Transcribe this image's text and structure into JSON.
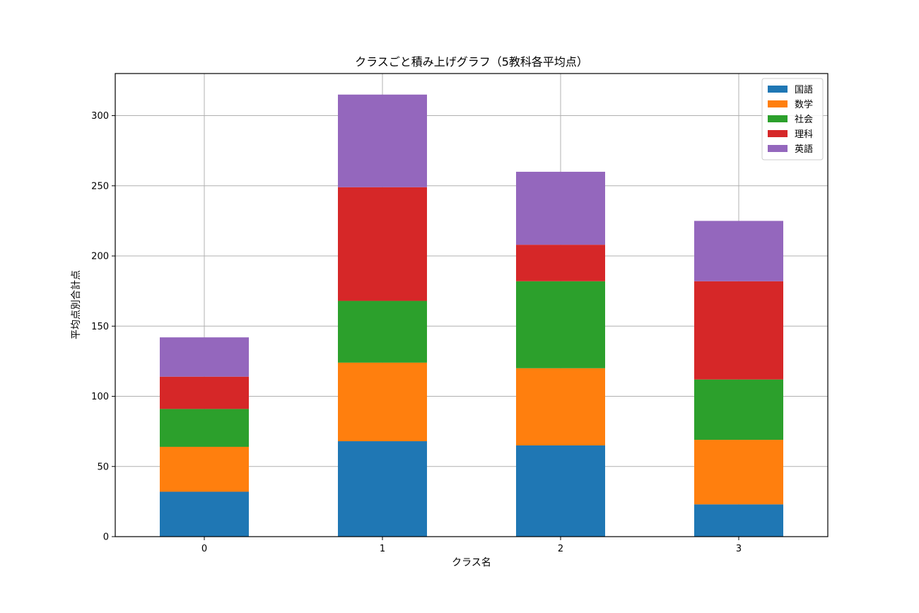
{
  "chart_data": {
    "type": "bar",
    "stacked": true,
    "title": "クラスごと積み上げグラフ（5教科各平均点）",
    "xlabel": "クラス名",
    "ylabel": "平均点別合計点",
    "categories": [
      "0",
      "1",
      "2",
      "3"
    ],
    "ylim": [
      0,
      330
    ],
    "yticks": [
      0,
      50,
      100,
      150,
      200,
      250,
      300
    ],
    "grid": true,
    "legend_position": "top-right",
    "series": [
      {
        "name": "国語",
        "color": "#1f77b4",
        "values": [
          32,
          68,
          65,
          23
        ]
      },
      {
        "name": "数学",
        "color": "#ff7f0e",
        "values": [
          32,
          56,
          55,
          46
        ]
      },
      {
        "name": "社会",
        "color": "#2ca02c",
        "values": [
          27,
          44,
          62,
          43
        ]
      },
      {
        "name": "理科",
        "color": "#d62728",
        "values": [
          23,
          81,
          26,
          70
        ]
      },
      {
        "name": "英語",
        "color": "#9467bd",
        "values": [
          28,
          66,
          52,
          43
        ]
      }
    ]
  }
}
